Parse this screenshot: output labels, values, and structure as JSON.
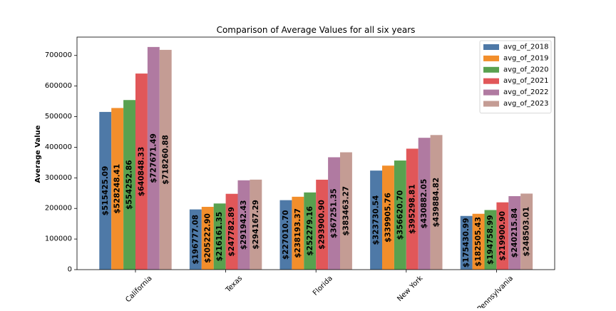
{
  "chart_data": {
    "type": "bar",
    "title": "Comparison of Average Values for all six years",
    "xlabel": "",
    "ylabel": "Average Value",
    "ylim": [
      0,
      760000
    ],
    "yticks": [
      0,
      100000,
      200000,
      300000,
      400000,
      500000,
      600000,
      700000
    ],
    "ytick_labels": [
      "0",
      "100000",
      "200000",
      "300000",
      "400000",
      "500000",
      "600000",
      "700000"
    ],
    "categories": [
      "California",
      "Texas",
      "Florida",
      "New York",
      "Pennsylvania"
    ],
    "legend_position": "top-right",
    "grid": false,
    "series": [
      {
        "name": "avg_of_2018",
        "color": "#4e79a7",
        "values": [
          515425.09,
          196777.08,
          227010.7,
          323730.54,
          175430.99
        ],
        "labels": [
          "$515425.09",
          "$196777.08",
          "$227010.70",
          "$323730.54",
          "$175430.99"
        ]
      },
      {
        "name": "avg_of_2019",
        "color": "#f28e2b",
        "values": [
          528248.41,
          205222.9,
          238193.37,
          339905.76,
          182505.43
        ],
        "labels": [
          "$528248.41",
          "$205222.90",
          "$238193.37",
          "$339905.76",
          "$182505.43"
        ]
      },
      {
        "name": "avg_of_2020",
        "color": "#59a14f",
        "values": [
          554252.86,
          216161.35,
          252279.16,
          356620.7,
          194758.99
        ],
        "labels": [
          "$554252.86",
          "$216161.35",
          "$252279.16",
          "$356620.70",
          "$194758.99"
        ]
      },
      {
        "name": "avg_of_2021",
        "color": "#e15759",
        "values": [
          640848.33,
          247782.89,
          293900.9,
          395298.81,
          219900.9
        ],
        "labels": [
          "$640848.33",
          "$247782.89",
          "$293900.90",
          "$395298.81",
          "$219900.90"
        ]
      },
      {
        "name": "avg_of_2022",
        "color": "#b07aa1",
        "values": [
          727671.49,
          291942.43,
          367251.35,
          430882.05,
          240215.84
        ],
        "labels": [
          "$727671.49",
          "$291942.43",
          "$367251.35",
          "$430882.05",
          "$240215.84"
        ]
      },
      {
        "name": "avg_of_2023",
        "color": "#c49c94",
        "values": [
          718260.88,
          294167.29,
          383463.27,
          439884.82,
          248503.01
        ],
        "labels": [
          "$718260.88",
          "$294167.29",
          "$383463.27",
          "$439884.82",
          "$248503.01"
        ]
      }
    ]
  }
}
